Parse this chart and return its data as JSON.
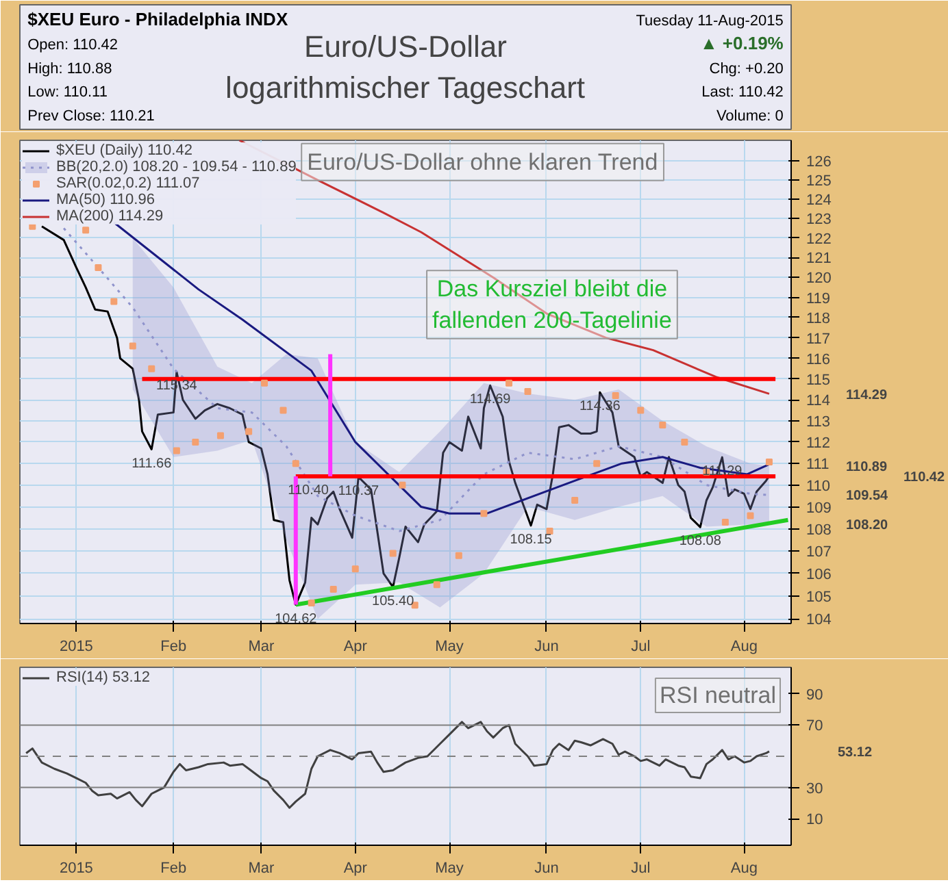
{
  "chart_data": [
    {
      "type": "line",
      "title": "Euro/US-Dollar\nlogarithmischer Tageschart",
      "log": true,
      "grid": true,
      "legend": "top left",
      "xlim": [
        "2014-12-15",
        "2015-08-18"
      ],
      "xticks": [
        {
          "value": "2015-01-02",
          "label": "2015"
        },
        {
          "value": "2015-02-02",
          "label": "Feb"
        },
        {
          "value": "2015-03-02",
          "label": "Mar"
        },
        {
          "value": "2015-04-01",
          "label": "Apr"
        },
        {
          "value": "2015-05-01",
          "label": "May"
        },
        {
          "value": "2015-06-01",
          "label": "Jun"
        },
        {
          "value": "2015-07-01",
          "label": "Jul"
        },
        {
          "value": "2015-08-03",
          "label": "Aug"
        }
      ],
      "ylim": [
        103.8,
        127.1
      ],
      "yticks": [
        104,
        105,
        106,
        107,
        108,
        109,
        110,
        111,
        112,
        113,
        114,
        115,
        116,
        117,
        118,
        119,
        120,
        121,
        122,
        123,
        124,
        125,
        126
      ],
      "series": [
        {
          "name": "$XEU (Daily) 110.42",
          "type": "line",
          "color": "#000000",
          "x": [
            "2014-12-22",
            "2014-12-29",
            "2015-01-02",
            "2015-01-05",
            "2015-01-08",
            "2015-01-12",
            "2015-01-15",
            "2015-01-16",
            "2015-01-20",
            "2015-01-22",
            "2015-01-23",
            "2015-01-26",
            "2015-01-28",
            "2015-02-02",
            "2015-02-03",
            "2015-02-05",
            "2015-02-09",
            "2015-02-12",
            "2015-02-16",
            "2015-02-20",
            "2015-02-24",
            "2015-02-26",
            "2015-03-02",
            "2015-03-04",
            "2015-03-06",
            "2015-03-09",
            "2015-03-11",
            "2015-03-13",
            "2015-03-16",
            "2015-03-18",
            "2015-03-20",
            "2015-03-23",
            "2015-03-25",
            "2015-03-27",
            "2015-03-31",
            "2015-04-02",
            "2015-04-06",
            "2015-04-08",
            "2015-04-10",
            "2015-04-13",
            "2015-04-15",
            "2015-04-17",
            "2015-04-21",
            "2015-04-23",
            "2015-04-27",
            "2015-04-29",
            "2015-05-01",
            "2015-05-05",
            "2015-05-07",
            "2015-05-11",
            "2015-05-12",
            "2015-05-14",
            "2015-05-18",
            "2015-05-20",
            "2015-05-22",
            "2015-05-27",
            "2015-05-29",
            "2015-06-01",
            "2015-06-03",
            "2015-06-05",
            "2015-06-08",
            "2015-06-10",
            "2015-06-12",
            "2015-06-15",
            "2015-06-17",
            "2015-06-18",
            "2015-06-22",
            "2015-06-24",
            "2015-06-26",
            "2015-06-29",
            "2015-07-01",
            "2015-07-03",
            "2015-07-06",
            "2015-07-08",
            "2015-07-10",
            "2015-07-13",
            "2015-07-15",
            "2015-07-17",
            "2015-07-20",
            "2015-07-22",
            "2015-07-24",
            "2015-07-27",
            "2015-07-29",
            "2015-07-31",
            "2015-08-03",
            "2015-08-05",
            "2015-08-07",
            "2015-08-10",
            "2015-08-11"
          ],
          "values": [
            122.6,
            121.9,
            120.5,
            119.5,
            118.4,
            118.3,
            117.0,
            116.0,
            115.5,
            114.0,
            112.5,
            111.66,
            113.3,
            113.4,
            115.34,
            114.0,
            113.1,
            113.5,
            113.8,
            113.6,
            113.3,
            112.0,
            111.7,
            110.5,
            108.4,
            108.3,
            105.7,
            104.62,
            105.6,
            108.5,
            108.2,
            109.4,
            109.7,
            108.9,
            107.6,
            110.37,
            109.8,
            107.9,
            106.0,
            105.4,
            106.7,
            108.1,
            107.4,
            108.2,
            108.8,
            111.5,
            112.0,
            111.6,
            113.2,
            111.7,
            113.6,
            114.69,
            113.2,
            111.1,
            110.1,
            108.15,
            109.1,
            108.9,
            110.5,
            112.7,
            112.8,
            112.6,
            112.4,
            112.4,
            112.5,
            114.36,
            113.4,
            111.8,
            111.6,
            111.3,
            110.4,
            110.6,
            110.3,
            110.1,
            111.3,
            110.0,
            109.7,
            108.5,
            108.08,
            109.3,
            109.9,
            111.29,
            109.5,
            109.8,
            109.6,
            108.9,
            109.7,
            110.2,
            110.42
          ]
        },
        {
          "name": "BB(20,2.0) 108.20 - 109.54 - 110.89",
          "type": "line",
          "color": "#8f93cc",
          "line_style": "dotted",
          "x": [
            "2014-12-29",
            "2015-01-09",
            "2015-01-20",
            "2015-02-02",
            "2015-02-16",
            "2015-02-27",
            "2015-03-10",
            "2015-03-20",
            "2015-04-01",
            "2015-04-15",
            "2015-04-28",
            "2015-05-12",
            "2015-05-26",
            "2015-06-10",
            "2015-06-24",
            "2015-07-08",
            "2015-07-22",
            "2015-08-05",
            "2015-08-11"
          ],
          "values": [
            122.5,
            120.5,
            118.5,
            115.5,
            113.6,
            113.4,
            111.8,
            109.5,
            108.6,
            107.9,
            108.4,
            110.5,
            111.5,
            111.2,
            111.8,
            111.3,
            110.0,
            109.6,
            109.54
          ],
          "lower": [
            null,
            null,
            114.5,
            111.3,
            111.6,
            112.1,
            107.5,
            104.0,
            105.5,
            105.6,
            104.5,
            106.0,
            109.0,
            108.4,
            109.0,
            109.5,
            108.1,
            108.2,
            108.2
          ],
          "upper": [
            null,
            null,
            122.0,
            119.5,
            115.6,
            114.8,
            116.2,
            116.0,
            112.0,
            110.6,
            112.5,
            114.8,
            114.3,
            114.0,
            114.5,
            113.0,
            111.8,
            111.0,
            110.89
          ]
        },
        {
          "name": "SAR(0.02,0.2) 111.07",
          "type": "scatter",
          "marker": "square",
          "color": "#f4a070",
          "x": [
            "2014-12-19",
            "2015-01-05",
            "2015-01-09",
            "2015-01-14",
            "2015-01-20",
            "2015-01-26",
            "2015-02-03",
            "2015-02-09",
            "2015-02-17",
            "2015-02-26",
            "2015-03-03",
            "2015-03-09",
            "2015-03-13",
            "2015-03-18",
            "2015-03-25",
            "2015-04-01",
            "2015-04-13",
            "2015-04-16",
            "2015-04-20",
            "2015-04-27",
            "2015-05-04",
            "2015-05-12",
            "2015-05-20",
            "2015-05-26",
            "2015-06-02",
            "2015-06-10",
            "2015-06-17",
            "2015-06-23",
            "2015-07-01",
            "2015-07-08",
            "2015-07-15",
            "2015-07-22",
            "2015-07-28",
            "2015-08-05",
            "2015-08-11"
          ],
          "values": [
            122.6,
            122.4,
            120.5,
            118.8,
            116.6,
            115.5,
            111.6,
            112.0,
            112.3,
            112.5,
            114.8,
            113.5,
            111.0,
            104.7,
            105.3,
            106.2,
            106.9,
            110.0,
            104.6,
            105.5,
            106.8,
            108.7,
            114.8,
            114.4,
            107.9,
            109.3,
            111.0,
            114.2,
            113.5,
            112.8,
            112.0,
            110.6,
            108.3,
            108.6,
            111.07
          ]
        },
        {
          "name": "MA(50) 110.96",
          "type": "line",
          "color": "#1a1a80",
          "x": [
            "2015-01-14",
            "2015-02-10",
            "2015-02-24",
            "2015-03-18",
            "2015-04-01",
            "2015-04-22",
            "2015-05-01",
            "2015-05-13",
            "2015-06-10",
            "2015-06-25",
            "2015-07-08",
            "2015-07-20",
            "2015-08-04",
            "2015-08-11"
          ],
          "values": [
            122.8,
            119.4,
            117.9,
            115.4,
            112.0,
            109.0,
            108.7,
            108.7,
            110.2,
            111.0,
            111.3,
            110.8,
            110.5,
            110.96
          ]
        },
        {
          "name": "MA(200) 114.29",
          "type": "line",
          "color": "#c83232",
          "x": [
            "2015-02-23",
            "2015-03-20",
            "2015-04-10",
            "2015-04-22",
            "2015-05-15",
            "2015-06-01",
            "2015-06-20",
            "2015-07-05",
            "2015-07-25",
            "2015-08-11"
          ],
          "values": [
            127.1,
            125.0,
            123.3,
            122.3,
            120.0,
            118.2,
            117.0,
            116.4,
            115.1,
            114.29
          ]
        },
        {
          "type": "line",
          "color": "#ff0000",
          "x": [
            "2015-01-23",
            "2015-08-13"
          ],
          "values": [
            115,
            115
          ]
        },
        {
          "type": "line",
          "color": "#ff0000",
          "x": [
            "2015-03-13",
            "2015-08-13"
          ],
          "values": [
            110.4,
            110.4
          ]
        },
        {
          "type": "line",
          "color": "#22cc22",
          "x": [
            "2015-03-13",
            "2015-08-17"
          ],
          "values": [
            104.62,
            108.4
          ]
        },
        {
          "type": "line",
          "color": "#ff33ff",
          "x": [
            "2015-03-13",
            "2015-03-13"
          ],
          "values": [
            104.62,
            110.4
          ]
        },
        {
          "type": "line",
          "color": "#ff33ff",
          "x": [
            "2015-03-24",
            "2015-03-24"
          ],
          "values": [
            110.4,
            116.2
          ]
        }
      ],
      "annotations": [
        "$XEU Euro - Philadelphia INDX",
        "Open: 110.42",
        "High: 110.88",
        "Low: 110.11",
        "Prev Close: 110.21",
        "Tuesday 11-Aug-2015",
        "▲ +0.19%",
        "Chg: +0.20",
        "Last: 110.42",
        "Volume: 0",
        "Euro/US-Dollar ohne klaren Trend",
        "Das Kursziel bleibt die\nfallenden 200-Tagelinie",
        {
          "text": "115.34",
          "x": "2015-02-03",
          "y": 115.34
        },
        {
          "text": "111.66",
          "x": "2015-01-26",
          "y": 111.66
        },
        {
          "text": "110.40",
          "x": "2015-03-17",
          "y": 110.4
        },
        {
          "text": "110.37",
          "x": "2015-04-02",
          "y": 110.37
        },
        {
          "text": "104.62",
          "x": "2015-03-13",
          "y": 104.62
        },
        {
          "text": "105.40",
          "x": "2015-04-13",
          "y": 105.4
        },
        {
          "text": "114.69",
          "x": "2015-05-14",
          "y": 114.69
        },
        {
          "text": "108.15",
          "x": "2015-05-27",
          "y": 108.15
        },
        {
          "text": "114.36",
          "x": "2015-06-18",
          "y": 114.36
        },
        {
          "text": "108.08",
          "x": "2015-07-20",
          "y": 108.08
        },
        {
          "text": "111.29",
          "x": "2015-07-27",
          "y": 111.29
        },
        "114.29",
        "110.89",
        "110.42",
        "109.54",
        "108.20"
      ]
    },
    {
      "type": "line",
      "grid": "x",
      "legend": "top left",
      "xlim": [
        "2014-12-15",
        "2015-08-18"
      ],
      "xticks": [
        {
          "value": "2015-01-02",
          "label": "2015"
        },
        {
          "value": "2015-02-02",
          "label": "Feb"
        },
        {
          "value": "2015-03-02",
          "label": "Mar"
        },
        {
          "value": "2015-04-01",
          "label": "Apr"
        },
        {
          "value": "2015-05-01",
          "label": "May"
        },
        {
          "value": "2015-06-01",
          "label": "Jun"
        },
        {
          "value": "2015-07-01",
          "label": "Jul"
        },
        {
          "value": "2015-08-03",
          "label": "Aug"
        }
      ],
      "ylim": [
        -7,
        107
      ],
      "yticks": [
        10,
        30,
        70,
        90
      ],
      "ref_lines": [
        {
          "axis": "y",
          "value": 70,
          "color": "#808080"
        },
        {
          "axis": "y",
          "value": 30,
          "color": "#808080"
        },
        {
          "axis": "y",
          "value": 50,
          "color": "#808080",
          "line_style": "dashed"
        }
      ],
      "series": [
        {
          "name": "RSI(14) 53.12",
          "color": "#404040",
          "x": [
            "2014-12-17",
            "2014-12-19",
            "2014-12-22",
            "2014-12-26",
            "2014-12-30",
            "2015-01-02",
            "2015-01-05",
            "2015-01-07",
            "2015-01-09",
            "2015-01-13",
            "2015-01-15",
            "2015-01-19",
            "2015-01-21",
            "2015-01-23",
            "2015-01-26",
            "2015-01-28",
            "2015-01-30",
            "2015-02-02",
            "2015-02-04",
            "2015-02-06",
            "2015-02-10",
            "2015-02-13",
            "2015-02-18",
            "2015-02-20",
            "2015-02-24",
            "2015-02-26",
            "2015-03-02",
            "2015-03-04",
            "2015-03-06",
            "2015-03-09",
            "2015-03-11",
            "2015-03-13",
            "2015-03-16",
            "2015-03-18",
            "2015-03-20",
            "2015-03-24",
            "2015-03-27",
            "2015-03-31",
            "2015-04-02",
            "2015-04-06",
            "2015-04-08",
            "2015-04-10",
            "2015-04-13",
            "2015-04-17",
            "2015-04-21",
            "2015-04-24",
            "2015-04-28",
            "2015-05-01",
            "2015-05-05",
            "2015-05-07",
            "2015-05-11",
            "2015-05-13",
            "2015-05-15",
            "2015-05-18",
            "2015-05-20",
            "2015-05-22",
            "2015-05-26",
            "2015-05-28",
            "2015-06-01",
            "2015-06-03",
            "2015-06-05",
            "2015-06-08",
            "2015-06-10",
            "2015-06-12",
            "2015-06-15",
            "2015-06-19",
            "2015-06-22",
            "2015-06-24",
            "2015-06-26",
            "2015-06-29",
            "2015-07-01",
            "2015-07-03",
            "2015-07-07",
            "2015-07-09",
            "2015-07-13",
            "2015-07-15",
            "2015-07-17",
            "2015-07-20",
            "2015-07-22",
            "2015-07-24",
            "2015-07-27",
            "2015-07-29",
            "2015-07-31",
            "2015-08-03",
            "2015-08-05",
            "2015-08-07",
            "2015-08-10",
            "2015-08-11"
          ],
          "values": [
            52,
            55,
            46,
            42,
            39,
            36,
            33,
            28,
            25,
            26,
            23,
            27,
            22,
            18,
            26,
            28,
            30,
            40,
            45,
            41,
            43,
            45,
            46,
            44,
            45,
            42,
            36,
            34,
            28,
            22,
            17,
            21,
            26,
            42,
            50,
            54,
            52,
            48,
            52,
            53,
            46,
            40,
            41,
            46,
            49,
            50,
            58,
            64,
            72,
            68,
            72,
            66,
            62,
            68,
            70,
            58,
            50,
            44,
            45,
            54,
            58,
            54,
            60,
            59,
            57,
            61,
            58,
            51,
            53,
            50,
            47,
            48,
            44,
            48,
            44,
            43,
            37,
            36,
            45,
            48,
            54,
            48,
            50,
            46,
            47,
            50,
            52,
            53.12
          ]
        }
      ],
      "annotations": [
        "RSI neutral",
        "53.12"
      ]
    }
  ]
}
